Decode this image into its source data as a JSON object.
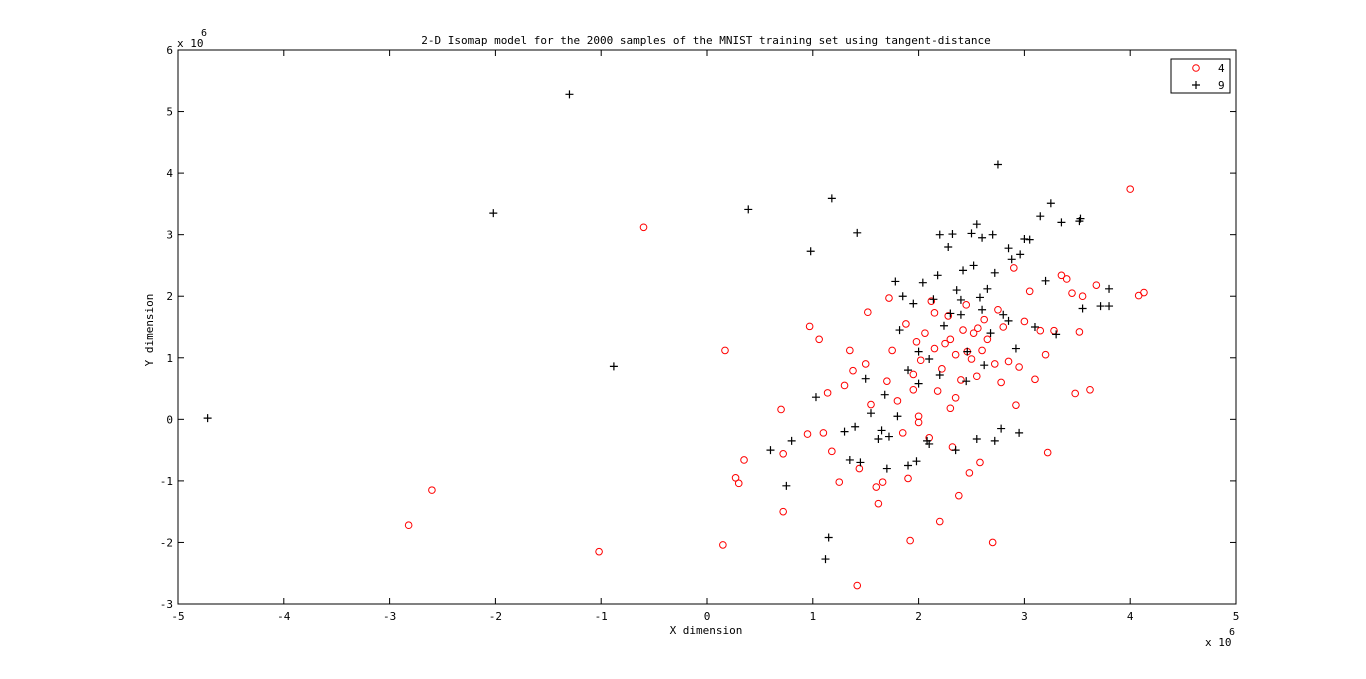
{
  "chart_data": {
    "type": "scatter",
    "title": "2-D Isomap model for the 2000 samples of the MNIST training set using tangent-distance",
    "xlabel": "X dimension",
    "ylabel": "Y dimension",
    "xlim": [
      -5000000,
      5000000
    ],
    "ylim": [
      -3000000,
      6000000
    ],
    "x_ticks": [
      -5,
      -4,
      -3,
      -2,
      -1,
      0,
      1,
      2,
      3,
      4,
      5
    ],
    "y_ticks": [
      -3,
      -2,
      -1,
      0,
      1,
      2,
      3,
      4,
      5,
      6
    ],
    "x_tick_labels": [
      "-5",
      "-4",
      "-3",
      "-2",
      "-1",
      "0",
      "1",
      "2",
      "3",
      "4",
      "5"
    ],
    "y_tick_labels": [
      "-3",
      "-2",
      "-1",
      "0",
      "1",
      "2",
      "3",
      "4",
      "5",
      "6"
    ],
    "x_multiplier": {
      "base": "x 10",
      "exp": "6"
    },
    "y_multiplier": {
      "base": "x 10",
      "exp": "6"
    },
    "grid": false,
    "legend_position": "top-right",
    "series": [
      {
        "name": "4",
        "marker": "circle",
        "color": "#ff0000",
        "points": [
          [
            -2.82,
            -1.72
          ],
          [
            -2.6,
            -1.15
          ],
          [
            -1.02,
            -2.15
          ],
          [
            -0.6,
            3.12
          ],
          [
            0.17,
            1.12
          ],
          [
            0.15,
            -2.04
          ],
          [
            0.27,
            -0.95
          ],
          [
            0.3,
            -1.04
          ],
          [
            0.35,
            -0.66
          ],
          [
            0.7,
            0.16
          ],
          [
            0.72,
            -1.5
          ],
          [
            0.72,
            -0.56
          ],
          [
            0.95,
            -0.24
          ],
          [
            0.97,
            1.51
          ],
          [
            1.06,
            1.3
          ],
          [
            1.1,
            -0.22
          ],
          [
            1.14,
            0.43
          ],
          [
            1.18,
            -0.52
          ],
          [
            1.25,
            -1.02
          ],
          [
            1.3,
            0.55
          ],
          [
            1.35,
            1.12
          ],
          [
            1.38,
            0.79
          ],
          [
            1.42,
            -2.7
          ],
          [
            1.44,
            -0.8
          ],
          [
            1.5,
            0.9
          ],
          [
            1.52,
            1.74
          ],
          [
            1.55,
            0.24
          ],
          [
            1.6,
            -1.1
          ],
          [
            1.62,
            -1.37
          ],
          [
            1.66,
            -1.02
          ],
          [
            1.7,
            0.62
          ],
          [
            1.72,
            1.97
          ],
          [
            1.75,
            1.12
          ],
          [
            1.8,
            0.3
          ],
          [
            1.85,
            -0.22
          ],
          [
            1.88,
            1.55
          ],
          [
            1.9,
            -0.96
          ],
          [
            1.92,
            -1.97
          ],
          [
            1.95,
            0.73
          ],
          [
            1.98,
            1.26
          ],
          [
            2.0,
            0.05
          ],
          [
            2.02,
            0.96
          ],
          [
            2.06,
            1.4
          ],
          [
            2.1,
            -0.3
          ],
          [
            2.12,
            1.92
          ],
          [
            2.15,
            1.15
          ],
          [
            2.18,
            0.46
          ],
          [
            2.2,
            -1.66
          ],
          [
            2.22,
            0.82
          ],
          [
            2.25,
            1.23
          ],
          [
            2.28,
            1.68
          ],
          [
            2.3,
            0.18
          ],
          [
            2.32,
            -0.45
          ],
          [
            2.35,
            1.05
          ],
          [
            2.38,
            -1.24
          ],
          [
            2.4,
            0.64
          ],
          [
            2.42,
            1.45
          ],
          [
            2.45,
            1.86
          ],
          [
            2.48,
            -0.87
          ],
          [
            2.5,
            0.98
          ],
          [
            2.52,
            1.4
          ],
          [
            2.55,
            0.7
          ],
          [
            2.58,
            -0.7
          ],
          [
            2.6,
            1.12
          ],
          [
            2.62,
            1.62
          ],
          [
            2.65,
            1.3
          ],
          [
            2.7,
            -2.0
          ],
          [
            2.72,
            0.9
          ],
          [
            2.75,
            1.78
          ],
          [
            2.78,
            0.6
          ],
          [
            2.8,
            1.5
          ],
          [
            2.85,
            0.94
          ],
          [
            2.9,
            2.46
          ],
          [
            2.92,
            0.23
          ],
          [
            2.95,
            0.85
          ],
          [
            3.0,
            1.59
          ],
          [
            3.05,
            2.08
          ],
          [
            3.1,
            0.65
          ],
          [
            3.15,
            1.44
          ],
          [
            3.2,
            1.05
          ],
          [
            3.22,
            -0.54
          ],
          [
            3.28,
            1.44
          ],
          [
            3.35,
            2.34
          ],
          [
            3.4,
            2.28
          ],
          [
            3.45,
            2.05
          ],
          [
            3.48,
            0.42
          ],
          [
            3.52,
            1.42
          ],
          [
            3.55,
            2.0
          ],
          [
            3.62,
            0.48
          ],
          [
            3.68,
            2.18
          ],
          [
            4.0,
            3.74
          ],
          [
            4.08,
            2.01
          ],
          [
            4.13,
            2.06
          ],
          [
            2.0,
            -0.05
          ],
          [
            2.3,
            1.3
          ],
          [
            2.46,
            1.1
          ],
          [
            2.56,
            1.48
          ],
          [
            2.15,
            1.73
          ],
          [
            1.95,
            0.48
          ],
          [
            2.35,
            0.35
          ]
        ]
      },
      {
        "name": "9",
        "marker": "plus",
        "color": "#000000",
        "points": [
          [
            -4.72,
            0.02
          ],
          [
            -2.02,
            3.35
          ],
          [
            -1.3,
            5.28
          ],
          [
            -0.88,
            0.86
          ],
          [
            0.39,
            3.41
          ],
          [
            0.6,
            -0.5
          ],
          [
            0.75,
            -1.08
          ],
          [
            0.8,
            -0.35
          ],
          [
            0.98,
            2.73
          ],
          [
            1.03,
            0.36
          ],
          [
            1.12,
            -2.27
          ],
          [
            1.15,
            -1.92
          ],
          [
            1.18,
            3.59
          ],
          [
            1.3,
            -0.2
          ],
          [
            1.4,
            -0.12
          ],
          [
            1.42,
            3.03
          ],
          [
            1.45,
            -0.7
          ],
          [
            1.5,
            0.66
          ],
          [
            1.55,
            0.1
          ],
          [
            1.62,
            -0.32
          ],
          [
            1.68,
            0.4
          ],
          [
            1.72,
            -0.28
          ],
          [
            1.78,
            2.24
          ],
          [
            1.8,
            0.05
          ],
          [
            1.82,
            1.45
          ],
          [
            1.85,
            2.0
          ],
          [
            1.9,
            0.8
          ],
          [
            1.95,
            1.88
          ],
          [
            1.98,
            -0.68
          ],
          [
            2.0,
            1.1
          ],
          [
            2.04,
            2.22
          ],
          [
            2.08,
            -0.35
          ],
          [
            2.1,
            0.98
          ],
          [
            2.14,
            1.95
          ],
          [
            2.18,
            2.34
          ],
          [
            2.2,
            3.0
          ],
          [
            2.24,
            1.52
          ],
          [
            2.28,
            2.8
          ],
          [
            2.3,
            1.72
          ],
          [
            2.32,
            3.01
          ],
          [
            2.36,
            2.1
          ],
          [
            2.4,
            1.94
          ],
          [
            2.42,
            2.42
          ],
          [
            2.46,
            1.1
          ],
          [
            2.5,
            3.02
          ],
          [
            2.52,
            2.5
          ],
          [
            2.55,
            3.17
          ],
          [
            2.58,
            1.98
          ],
          [
            2.6,
            2.95
          ],
          [
            2.62,
            0.88
          ],
          [
            2.65,
            2.12
          ],
          [
            2.68,
            1.4
          ],
          [
            2.7,
            3.0
          ],
          [
            2.72,
            2.38
          ],
          [
            2.75,
            4.14
          ],
          [
            2.78,
            -0.15
          ],
          [
            2.8,
            1.7
          ],
          [
            2.85,
            2.78
          ],
          [
            2.88,
            2.6
          ],
          [
            2.92,
            1.15
          ],
          [
            2.96,
            2.68
          ],
          [
            3.0,
            2.93
          ],
          [
            3.05,
            2.92
          ],
          [
            3.1,
            1.5
          ],
          [
            3.15,
            3.3
          ],
          [
            3.2,
            2.25
          ],
          [
            3.25,
            3.51
          ],
          [
            3.3,
            1.38
          ],
          [
            3.35,
            3.2
          ],
          [
            3.52,
            3.22
          ],
          [
            3.53,
            3.26
          ],
          [
            3.55,
            1.8
          ],
          [
            3.72,
            1.84
          ],
          [
            3.8,
            2.12
          ],
          [
            3.8,
            1.84
          ],
          [
            2.72,
            -0.35
          ],
          [
            2.95,
            -0.22
          ],
          [
            2.45,
            0.62
          ],
          [
            2.2,
            0.72
          ],
          [
            2.0,
            0.58
          ],
          [
            1.7,
            -0.8
          ],
          [
            1.65,
            -0.18
          ],
          [
            2.1,
            -0.4
          ],
          [
            2.35,
            -0.5
          ],
          [
            2.55,
            -0.32
          ],
          [
            1.35,
            -0.66
          ],
          [
            1.9,
            -0.75
          ],
          [
            2.4,
            1.7
          ],
          [
            2.6,
            1.78
          ],
          [
            2.85,
            1.6
          ]
        ]
      }
    ]
  }
}
